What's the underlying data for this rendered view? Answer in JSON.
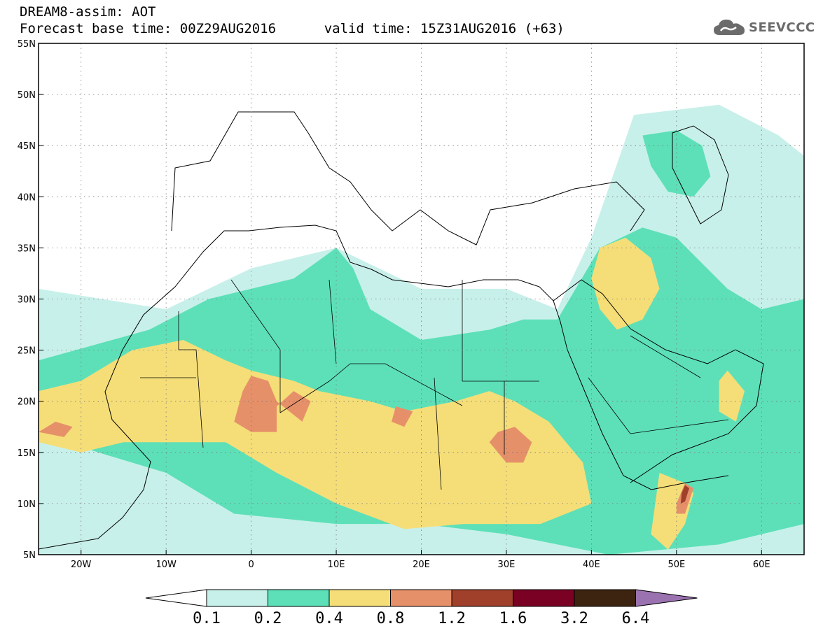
{
  "header": {
    "title": "DREAM8-assim: AOT",
    "base_label": "Forecast base time: 00Z29AUG2016",
    "valid_label": "valid time: 15Z31AUG2016 (+63)",
    "logo_text": "SEEVCCC",
    "logo_icon": "cloud-icon"
  },
  "map": {
    "lat_range": [
      5,
      55
    ],
    "lon_range": [
      -25,
      65
    ],
    "lat_ticks": [
      {
        "value": 55,
        "label": "55N"
      },
      {
        "value": 50,
        "label": "50N"
      },
      {
        "value": 45,
        "label": "45N"
      },
      {
        "value": 40,
        "label": "40N"
      },
      {
        "value": 35,
        "label": "35N"
      },
      {
        "value": 30,
        "label": "30N"
      },
      {
        "value": 25,
        "label": "25N"
      },
      {
        "value": 20,
        "label": "20N"
      },
      {
        "value": 15,
        "label": "15N"
      },
      {
        "value": 10,
        "label": "10N"
      },
      {
        "value": 5,
        "label": "5N"
      }
    ],
    "lon_ticks": [
      {
        "value": -20,
        "label": "20W"
      },
      {
        "value": -10,
        "label": "10W"
      },
      {
        "value": 0,
        "label": "0"
      },
      {
        "value": 10,
        "label": "10E"
      },
      {
        "value": 20,
        "label": "20E"
      },
      {
        "value": 30,
        "label": "30E"
      },
      {
        "value": 40,
        "label": "40E"
      },
      {
        "value": 50,
        "label": "50E"
      },
      {
        "value": 60,
        "label": "60E"
      }
    ],
    "grid": "dotted",
    "field_regions": [
      {
        "level": 0.1,
        "color": "#c8f0ea",
        "points": [
          [
            -25,
            31
          ],
          [
            -10,
            29
          ],
          [
            0,
            33
          ],
          [
            10,
            35
          ],
          [
            20,
            31
          ],
          [
            30,
            31
          ],
          [
            36,
            29
          ],
          [
            40,
            36
          ],
          [
            45,
            48
          ],
          [
            55,
            49
          ],
          [
            62,
            46
          ],
          [
            65,
            44
          ],
          [
            65,
            5
          ],
          [
            -25,
            5
          ],
          [
            -25,
            31
          ]
        ]
      },
      {
        "level": 0.2,
        "color": "#5de0b8",
        "points": [
          [
            -25,
            24
          ],
          [
            -12,
            27
          ],
          [
            -5,
            30
          ],
          [
            0,
            31
          ],
          [
            5,
            32
          ],
          [
            10,
            35
          ],
          [
            12,
            33
          ],
          [
            14,
            29
          ],
          [
            20,
            26
          ],
          [
            28,
            27
          ],
          [
            32,
            28
          ],
          [
            36,
            28
          ],
          [
            41,
            35
          ],
          [
            46,
            37
          ],
          [
            50,
            36
          ],
          [
            56,
            31
          ],
          [
            60,
            29
          ],
          [
            65,
            30
          ],
          [
            65,
            8
          ],
          [
            55,
            6
          ],
          [
            42,
            5
          ],
          [
            30,
            7
          ],
          [
            20,
            8
          ],
          [
            10,
            8
          ],
          [
            -2,
            9
          ],
          [
            -10,
            13
          ],
          [
            -18,
            15
          ],
          [
            -25,
            17
          ],
          [
            -25,
            24
          ]
        ]
      },
      {
        "level": 0.2,
        "color": "#5de0b8",
        "points": [
          [
            46,
            46
          ],
          [
            50,
            46.5
          ],
          [
            53,
            45
          ],
          [
            54,
            42
          ],
          [
            52,
            40
          ],
          [
            49,
            40.5
          ],
          [
            47,
            43
          ],
          [
            46,
            46
          ]
        ]
      },
      {
        "level": 0.4,
        "color": "#f5de78",
        "points": [
          [
            -25,
            21
          ],
          [
            -20,
            22
          ],
          [
            -14,
            25
          ],
          [
            -8,
            26
          ],
          [
            -3,
            24
          ],
          [
            0,
            23
          ],
          [
            5,
            22
          ],
          [
            8,
            21
          ],
          [
            14,
            20
          ],
          [
            18,
            19
          ],
          [
            24,
            20
          ],
          [
            28,
            21
          ],
          [
            31,
            20
          ],
          [
            35,
            18
          ],
          [
            39,
            14
          ],
          [
            40,
            10
          ],
          [
            34,
            8
          ],
          [
            25,
            8
          ],
          [
            18,
            7.5
          ],
          [
            10,
            10
          ],
          [
            3,
            13
          ],
          [
            -3,
            16
          ],
          [
            -8,
            16
          ],
          [
            -15,
            16
          ],
          [
            -20,
            15
          ],
          [
            -25,
            16
          ],
          [
            -25,
            21
          ]
        ]
      },
      {
        "level": 0.4,
        "color": "#f5de78",
        "points": [
          [
            41,
            35
          ],
          [
            44,
            36
          ],
          [
            47,
            34
          ],
          [
            48,
            31
          ],
          [
            46,
            28
          ],
          [
            43,
            27
          ],
          [
            41,
            29
          ],
          [
            40,
            32
          ],
          [
            41,
            35
          ]
        ]
      },
      {
        "level": 0.4,
        "color": "#f5de78",
        "points": [
          [
            48,
            13
          ],
          [
            51,
            12
          ],
          [
            52,
            11
          ],
          [
            51,
            8
          ],
          [
            49,
            5.5
          ],
          [
            47,
            7
          ],
          [
            47.5,
            10
          ],
          [
            48,
            13
          ]
        ]
      },
      {
        "level": 0.4,
        "color": "#f5de78",
        "points": [
          [
            56,
            23
          ],
          [
            58,
            21
          ],
          [
            57,
            18
          ],
          [
            55,
            19
          ],
          [
            55,
            22
          ],
          [
            56,
            23
          ]
        ]
      },
      {
        "level": 0.8,
        "color": "#e6906a",
        "points": [
          [
            -2,
            18
          ],
          [
            0,
            17
          ],
          [
            3,
            17
          ],
          [
            3,
            19.5
          ],
          [
            5,
            21
          ],
          [
            7,
            20
          ],
          [
            6,
            18
          ],
          [
            3,
            20
          ],
          [
            2,
            22
          ],
          [
            0,
            22.5
          ],
          [
            -1,
            21
          ],
          [
            -2,
            18
          ]
        ]
      },
      {
        "level": 0.8,
        "color": "#e6906a",
        "points": [
          [
            28,
            16
          ],
          [
            30,
            14
          ],
          [
            32,
            14
          ],
          [
            33,
            16
          ],
          [
            31,
            17.5
          ],
          [
            29,
            17
          ],
          [
            28,
            16
          ]
        ]
      },
      {
        "level": 0.8,
        "color": "#e6906a",
        "points": [
          [
            -25,
            17
          ],
          [
            -22,
            16.5
          ],
          [
            -21,
            17.5
          ],
          [
            -23,
            18
          ],
          [
            -25,
            17
          ]
        ]
      },
      {
        "level": 0.8,
        "color": "#e6906a",
        "points": [
          [
            16.5,
            18
          ],
          [
            18,
            17.5
          ],
          [
            19,
            19
          ],
          [
            17,
            19.5
          ],
          [
            16.5,
            18
          ]
        ]
      },
      {
        "level": 0.8,
        "color": "#e6906a",
        "points": [
          [
            50,
            9
          ],
          [
            51,
            9
          ],
          [
            52,
            11.5
          ],
          [
            51,
            12
          ],
          [
            50,
            10
          ],
          [
            50,
            9
          ]
        ]
      },
      {
        "level": 1.2,
        "color": "#a0402a",
        "points": [
          [
            50.5,
            10
          ],
          [
            51,
            10.2
          ],
          [
            51.5,
            11.5
          ],
          [
            51,
            11.8
          ],
          [
            50.6,
            11
          ],
          [
            50.5,
            10
          ]
        ]
      }
    ]
  },
  "colorbar": {
    "levels": [
      "0.1",
      "0.2",
      "0.4",
      "0.8",
      "1.2",
      "1.6",
      "3.2",
      "6.4"
    ],
    "colors": [
      "#ffffff",
      "#c8f0ea",
      "#5de0b8",
      "#f5de78",
      "#e6906a",
      "#a0402a",
      "#7a0024",
      "#3c2410",
      "#9b72b0"
    ]
  }
}
